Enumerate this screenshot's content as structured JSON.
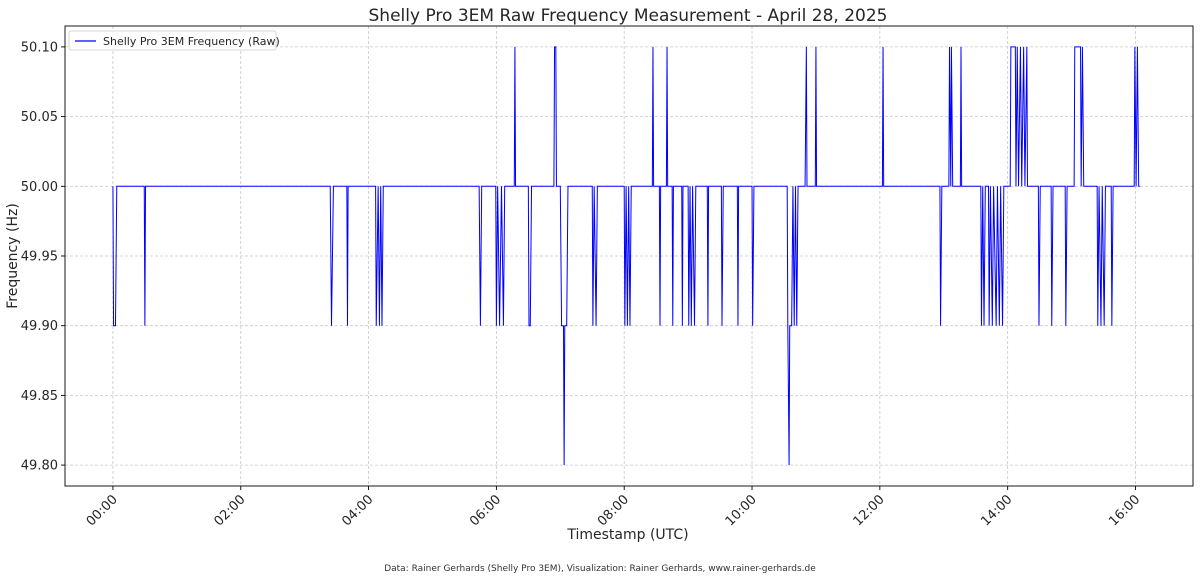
{
  "chart_data": {
    "type": "line",
    "title": "Shelly Pro 3EM Raw Frequency Measurement - April 28, 2025",
    "xlabel": "Timestamp (UTC)",
    "ylabel": "Frequency (Hz)",
    "xlim": [
      -0.75,
      16.9
    ],
    "ylim": [
      49.785,
      50.115
    ],
    "grid": true,
    "legend_position": "top-left",
    "caption": "Data: Rainer Gerhards (Shelly Pro 3EM), Visualization: Rainer Gerhards, www.rainer-gerhards.de",
    "x_ticks": [
      {
        "value": 0,
        "label": "00:00"
      },
      {
        "value": 2,
        "label": "02:00"
      },
      {
        "value": 4,
        "label": "04:00"
      },
      {
        "value": 6,
        "label": "06:00"
      },
      {
        "value": 8,
        "label": "08:00"
      },
      {
        "value": 10,
        "label": "10:00"
      },
      {
        "value": 12,
        "label": "12:00"
      },
      {
        "value": 14,
        "label": "14:00"
      },
      {
        "value": 16,
        "label": "16:00"
      }
    ],
    "y_ticks": [
      {
        "value": 49.8,
        "label": "49.80"
      },
      {
        "value": 49.85,
        "label": "49.85"
      },
      {
        "value": 49.9,
        "label": "49.90"
      },
      {
        "value": 49.95,
        "label": "49.95"
      },
      {
        "value": 50.0,
        "label": "50.00"
      },
      {
        "value": 50.05,
        "label": "50.05"
      },
      {
        "value": 50.1,
        "label": "50.10"
      }
    ],
    "series": [
      {
        "name": "Shelly Pro 3EM Frequency (Raw)",
        "color": "#0000ff",
        "points": [
          [
            0.0,
            50.0
          ],
          [
            0.01,
            49.9
          ],
          [
            0.04,
            49.9
          ],
          [
            0.06,
            50.0
          ],
          [
            0.49,
            50.0
          ],
          [
            0.5,
            49.9
          ],
          [
            0.51,
            50.0
          ],
          [
            3.4,
            50.0
          ],
          [
            3.42,
            49.9
          ],
          [
            3.45,
            50.0
          ],
          [
            3.66,
            50.0
          ],
          [
            3.67,
            49.9
          ],
          [
            3.68,
            50.0
          ],
          [
            4.11,
            50.0
          ],
          [
            4.12,
            49.9
          ],
          [
            4.15,
            50.0
          ],
          [
            4.17,
            49.9
          ],
          [
            4.19,
            50.0
          ],
          [
            4.21,
            49.9
          ],
          [
            4.23,
            50.0
          ],
          [
            5.73,
            50.0
          ],
          [
            5.75,
            49.9
          ],
          [
            5.77,
            50.0
          ],
          [
            5.99,
            50.0
          ],
          [
            6.0,
            49.9
          ],
          [
            6.02,
            50.0
          ],
          [
            6.05,
            49.9
          ],
          [
            6.08,
            50.0
          ],
          [
            6.11,
            49.9
          ],
          [
            6.13,
            50.0
          ],
          [
            6.28,
            50.0
          ],
          [
            6.29,
            50.1
          ],
          [
            6.3,
            50.0
          ],
          [
            6.5,
            50.0
          ],
          [
            6.51,
            49.9
          ],
          [
            6.53,
            49.9
          ],
          [
            6.55,
            50.0
          ],
          [
            6.9,
            50.0
          ],
          [
            6.91,
            50.1
          ],
          [
            6.93,
            50.1
          ],
          [
            6.94,
            50.0
          ],
          [
            7.0,
            50.0
          ],
          [
            7.02,
            49.9
          ],
          [
            7.05,
            49.9
          ],
          [
            7.06,
            49.8
          ],
          [
            7.07,
            49.9
          ],
          [
            7.1,
            49.9
          ],
          [
            7.12,
            50.0
          ],
          [
            7.5,
            50.0
          ],
          [
            7.51,
            49.9
          ],
          [
            7.53,
            50.0
          ],
          [
            7.56,
            49.9
          ],
          [
            7.58,
            50.0
          ],
          [
            8.0,
            50.0
          ],
          [
            8.01,
            49.9
          ],
          [
            8.03,
            50.0
          ],
          [
            8.05,
            49.9
          ],
          [
            8.07,
            50.0
          ],
          [
            8.09,
            49.9
          ],
          [
            8.11,
            50.0
          ],
          [
            8.44,
            50.0
          ],
          [
            8.45,
            50.1
          ],
          [
            8.46,
            50.0
          ],
          [
            8.55,
            50.0
          ],
          [
            8.56,
            49.9
          ],
          [
            8.57,
            50.0
          ],
          [
            8.66,
            50.0
          ],
          [
            8.67,
            50.1
          ],
          [
            8.68,
            50.0
          ],
          [
            8.75,
            50.0
          ],
          [
            8.76,
            49.9
          ],
          [
            8.77,
            50.0
          ],
          [
            8.9,
            50.0
          ],
          [
            8.91,
            49.9
          ],
          [
            8.92,
            50.0
          ],
          [
            9.0,
            50.0
          ],
          [
            9.01,
            49.9
          ],
          [
            9.03,
            50.0
          ],
          [
            9.05,
            49.9
          ],
          [
            9.07,
            50.0
          ],
          [
            9.1,
            49.9
          ],
          [
            9.12,
            50.0
          ],
          [
            9.3,
            50.0
          ],
          [
            9.31,
            49.9
          ],
          [
            9.32,
            50.0
          ],
          [
            9.52,
            50.0
          ],
          [
            9.53,
            49.9
          ],
          [
            9.55,
            50.0
          ],
          [
            9.77,
            50.0
          ],
          [
            9.78,
            49.9
          ],
          [
            9.79,
            50.0
          ],
          [
            10.0,
            50.0
          ],
          [
            10.01,
            49.9
          ],
          [
            10.03,
            50.0
          ],
          [
            10.55,
            50.0
          ],
          [
            10.56,
            49.9
          ],
          [
            10.58,
            49.8
          ],
          [
            10.59,
            49.9
          ],
          [
            10.62,
            49.9
          ],
          [
            10.64,
            50.0
          ],
          [
            10.66,
            49.9
          ],
          [
            10.68,
            50.0
          ],
          [
            10.7,
            49.9
          ],
          [
            10.72,
            50.0
          ],
          [
            10.83,
            50.0
          ],
          [
            10.85,
            50.1
          ],
          [
            10.86,
            50.0
          ],
          [
            10.99,
            50.0
          ],
          [
            11.0,
            50.1
          ],
          [
            11.01,
            50.0
          ],
          [
            12.04,
            50.0
          ],
          [
            12.05,
            50.1
          ],
          [
            12.06,
            50.0
          ],
          [
            12.94,
            50.0
          ],
          [
            12.95,
            49.9
          ],
          [
            12.97,
            50.0
          ],
          [
            13.08,
            50.0
          ],
          [
            13.09,
            50.1
          ],
          [
            13.11,
            50.0
          ],
          [
            13.12,
            50.1
          ],
          [
            13.14,
            50.0
          ],
          [
            13.26,
            50.0
          ],
          [
            13.27,
            50.1
          ],
          [
            13.28,
            50.0
          ],
          [
            13.58,
            50.0
          ],
          [
            13.59,
            49.9
          ],
          [
            13.61,
            50.0
          ],
          [
            13.63,
            49.9
          ],
          [
            13.65,
            50.0
          ],
          [
            13.7,
            50.0
          ],
          [
            13.71,
            49.9
          ],
          [
            13.73,
            50.0
          ],
          [
            13.76,
            49.9
          ],
          [
            13.78,
            50.0
          ],
          [
            13.82,
            49.9
          ],
          [
            13.84,
            50.0
          ],
          [
            13.87,
            49.9
          ],
          [
            13.89,
            50.0
          ],
          [
            13.92,
            49.9
          ],
          [
            13.94,
            50.0
          ],
          [
            14.04,
            50.0
          ],
          [
            14.05,
            50.1
          ],
          [
            14.12,
            50.1
          ],
          [
            14.13,
            50.0
          ],
          [
            14.15,
            50.1
          ],
          [
            14.17,
            50.0
          ],
          [
            14.2,
            50.1
          ],
          [
            14.22,
            50.0
          ],
          [
            14.25,
            50.1
          ],
          [
            14.27,
            50.0
          ],
          [
            14.3,
            50.1
          ],
          [
            14.31,
            50.0
          ],
          [
            14.48,
            50.0
          ],
          [
            14.49,
            49.9
          ],
          [
            14.51,
            50.0
          ],
          [
            14.68,
            50.0
          ],
          [
            14.69,
            49.9
          ],
          [
            14.71,
            50.0
          ],
          [
            14.9,
            50.0
          ],
          [
            14.91,
            49.9
          ],
          [
            14.93,
            50.0
          ],
          [
            15.04,
            50.0
          ],
          [
            15.05,
            50.1
          ],
          [
            15.14,
            50.1
          ],
          [
            15.15,
            50.0
          ],
          [
            15.17,
            50.1
          ],
          [
            15.19,
            50.0
          ],
          [
            15.4,
            50.0
          ],
          [
            15.41,
            49.9
          ],
          [
            15.43,
            50.0
          ],
          [
            15.46,
            49.9
          ],
          [
            15.48,
            50.0
          ],
          [
            15.51,
            49.9
          ],
          [
            15.53,
            50.0
          ],
          [
            15.62,
            50.0
          ],
          [
            15.63,
            49.9
          ],
          [
            15.65,
            50.0
          ],
          [
            15.98,
            50.0
          ],
          [
            15.99,
            50.1
          ],
          [
            16.01,
            50.0
          ],
          [
            16.03,
            50.1
          ],
          [
            16.05,
            50.0
          ],
          [
            16.07,
            50.0
          ]
        ]
      }
    ]
  }
}
